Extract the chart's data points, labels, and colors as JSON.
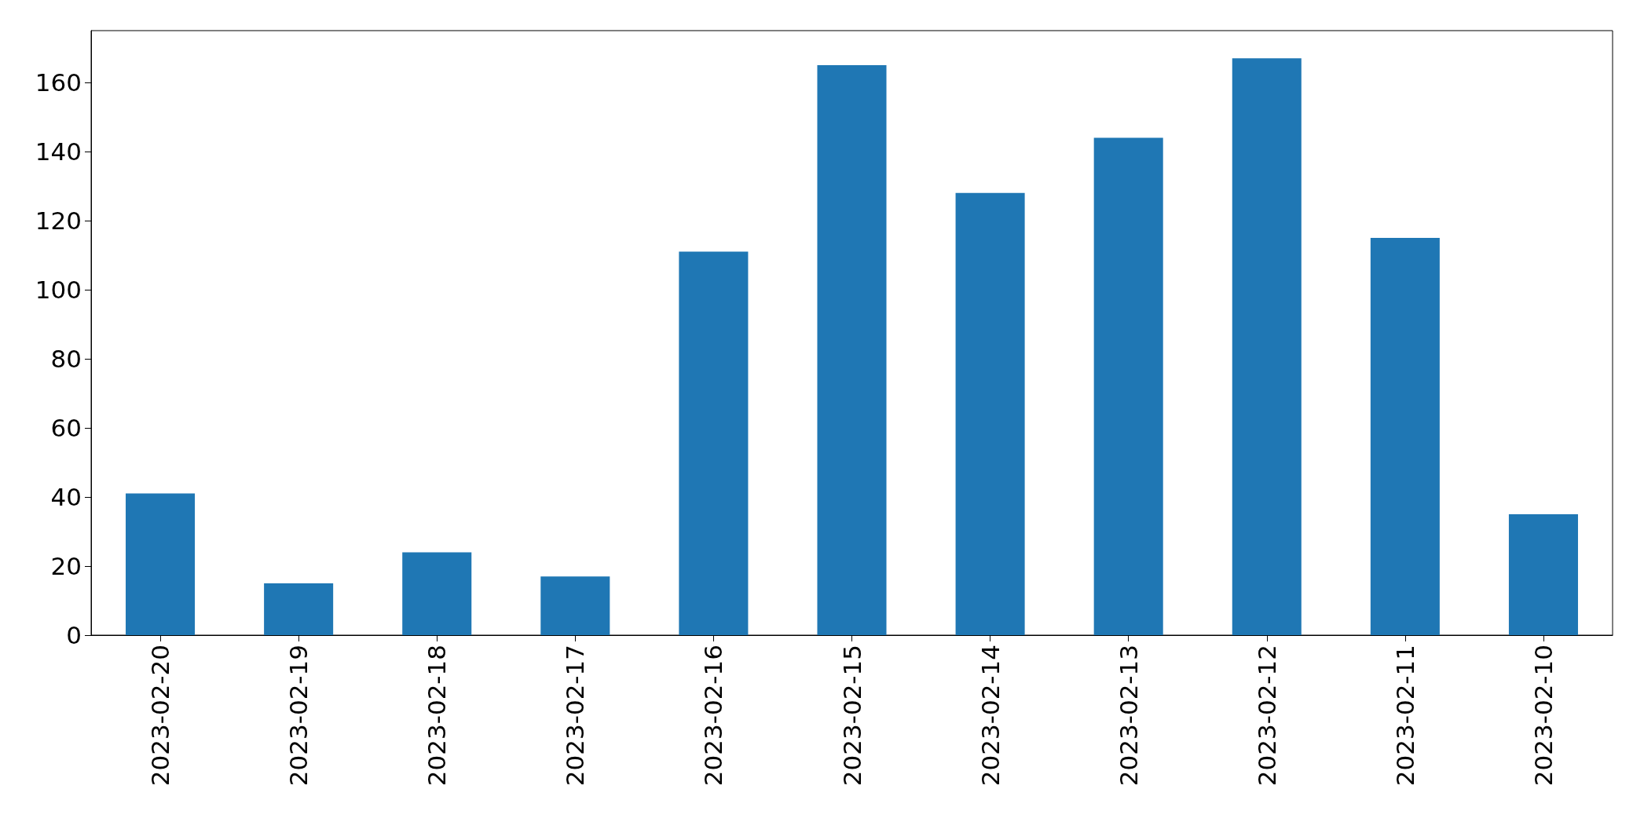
{
  "chart_data": {
    "type": "bar",
    "categories": [
      "2023-02-20",
      "2023-02-19",
      "2023-02-18",
      "2023-02-17",
      "2023-02-16",
      "2023-02-15",
      "2023-02-14",
      "2023-02-13",
      "2023-02-12",
      "2023-02-11",
      "2023-02-10"
    ],
    "values": [
      41,
      15,
      24,
      17,
      111,
      165,
      128,
      144,
      167,
      115,
      35
    ],
    "color": "#1f77b4",
    "ylim": [
      0,
      175
    ],
    "yticks": [
      0,
      20,
      40,
      60,
      80,
      100,
      120,
      140,
      160
    ],
    "grid": false
  }
}
